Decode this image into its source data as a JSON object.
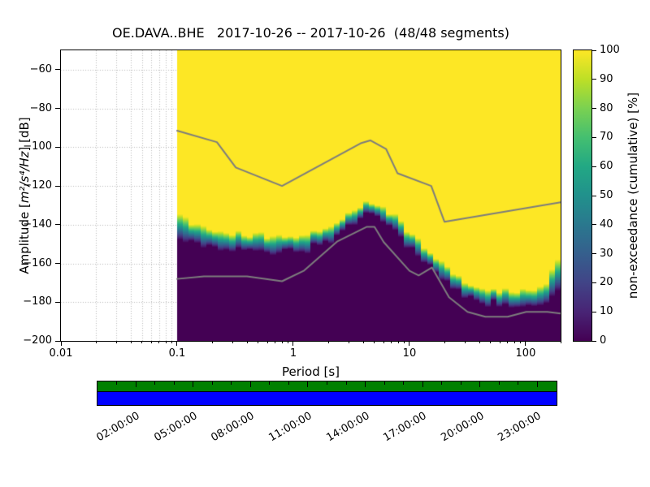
{
  "title": "OE.DAVA..BHE   2017-10-26 -- 2017-10-26  (48/48 segments)",
  "axes": {
    "xlabel": "Period [s]",
    "ylabel_prefix": "Amplitude [",
    "ylabel_math": "m²/s⁴/Hz",
    "ylabel_suffix": "] [dB]",
    "xscale": "log",
    "xlim": [
      0.01,
      200
    ],
    "ylim": [
      -200,
      -50
    ],
    "x_ticks": [
      {
        "v": 0.01,
        "label": "0.01"
      },
      {
        "v": 0.1,
        "label": "0.1"
      },
      {
        "v": 1,
        "label": "1"
      },
      {
        "v": 10,
        "label": "10"
      },
      {
        "v": 100,
        "label": "100"
      }
    ],
    "y_ticks": [
      {
        "v": -60,
        "label": "−60"
      },
      {
        "v": -80,
        "label": "−80"
      },
      {
        "v": -100,
        "label": "−100"
      },
      {
        "v": -120,
        "label": "−120"
      },
      {
        "v": -140,
        "label": "−140"
      },
      {
        "v": -160,
        "label": "−160"
      },
      {
        "v": -180,
        "label": "−180"
      },
      {
        "v": -200,
        "label": "−200"
      }
    ]
  },
  "colorbar": {
    "label": "non-exceedance (cumulative) [%]",
    "ticks": [
      {
        "v": 0,
        "label": "0"
      },
      {
        "v": 10,
        "label": "10"
      },
      {
        "v": 20,
        "label": "20"
      },
      {
        "v": 30,
        "label": "30"
      },
      {
        "v": 40,
        "label": "40"
      },
      {
        "v": 50,
        "label": "50"
      },
      {
        "v": 60,
        "label": "60"
      },
      {
        "v": 70,
        "label": "70"
      },
      {
        "v": 80,
        "label": "80"
      },
      {
        "v": 90,
        "label": "90"
      },
      {
        "v": 100,
        "label": "100"
      }
    ],
    "colormap": "viridis",
    "stops": [
      {
        "p": 0.0,
        "c": "#440154"
      },
      {
        "p": 0.1,
        "c": "#482475"
      },
      {
        "p": 0.2,
        "c": "#414487"
      },
      {
        "p": 0.3,
        "c": "#355f8d"
      },
      {
        "p": 0.4,
        "c": "#2a788e"
      },
      {
        "p": 0.5,
        "c": "#21918c"
      },
      {
        "p": 0.6,
        "c": "#22a884"
      },
      {
        "p": 0.7,
        "c": "#44bf70"
      },
      {
        "p": 0.8,
        "c": "#7ad151"
      },
      {
        "p": 0.9,
        "c": "#bddf26"
      },
      {
        "p": 1.0,
        "c": "#fde725"
      }
    ]
  },
  "chart_data": {
    "type": "heatmap",
    "title": "OE.DAVA..BHE   2017-10-26 -- 2017-10-26  (48/48 segments)",
    "xlabel": "Period [s]",
    "ylabel": "Amplitude [m²/s⁴/Hz] [dB]",
    "xscale": "log",
    "xlim": [
      0.01,
      200
    ],
    "ylim": [
      -200,
      -50
    ],
    "colorbar_label": "non-exceedance (cumulative) [%]",
    "colorbar_range": [
      0,
      100
    ],
    "data_period_range": [
      0.1,
      200
    ],
    "value_above_boundary_pct": 100,
    "value_below_boundary_pct": 0,
    "transition_boundary": {
      "periods": [
        0.1,
        0.12,
        0.15,
        0.2,
        0.3,
        0.5,
        0.7,
        1.0,
        1.5,
        2.0,
        3.0,
        4.0,
        5.0,
        6.0,
        8.0,
        10,
        13,
        16,
        20,
        25,
        30,
        40,
        60,
        80,
        100,
        130,
        160,
        200
      ],
      "center_db": [
        -139,
        -144,
        -146,
        -147,
        -148,
        -150,
        -151,
        -150,
        -148,
        -145,
        -138,
        -132,
        -131,
        -133,
        -141,
        -148,
        -155,
        -160,
        -165,
        -170,
        -173,
        -176,
        -178,
        -179,
        -179,
        -178,
        -173,
        -166
      ],
      "band_db": [
        14,
        12,
        10,
        9,
        8,
        8,
        8,
        8,
        8,
        8,
        7,
        6,
        6,
        7,
        8,
        8,
        8,
        8,
        8,
        8,
        7,
        7,
        7,
        7,
        8,
        9,
        12,
        16
      ]
    },
    "noise_models": {
      "high_noise_model": {
        "periods": [
          0.1,
          0.22,
          0.32,
          0.8,
          3.8,
          4.6,
          6.3,
          7.9,
          15.4,
          20.0,
          200.0
        ],
        "db": [
          -91.5,
          -97.4,
          -110.5,
          -120.0,
          -98.0,
          -96.5,
          -101.0,
          -113.5,
          -120.0,
          -138.5,
          -128.5
        ]
      },
      "low_noise_model": {
        "periods": [
          0.1,
          0.17,
          0.4,
          0.8,
          1.24,
          2.4,
          4.3,
          5.0,
          6.0,
          10.0,
          12.0,
          15.6,
          21.9,
          31.6,
          45.0,
          70.0,
          101.0,
          154.0,
          200.0
        ],
        "db": [
          -168.0,
          -166.7,
          -166.7,
          -169.2,
          -163.7,
          -148.6,
          -141.1,
          -141.1,
          -149.0,
          -163.8,
          -166.2,
          -162.1,
          -177.5,
          -185.0,
          -187.5,
          -187.5,
          -185.0,
          -185.0,
          -185.9
        ]
      }
    }
  },
  "timeline": {
    "range_hours": [
      0,
      24
    ],
    "tick_labels": [
      {
        "hour": 2,
        "label": "02:00:00"
      },
      {
        "hour": 5,
        "label": "05:00:00"
      },
      {
        "hour": 8,
        "label": "08:00:00"
      },
      {
        "hour": 11,
        "label": "11:00:00"
      },
      {
        "hour": 14,
        "label": "14:00:00"
      },
      {
        "hour": 17,
        "label": "17:00:00"
      },
      {
        "hour": 20,
        "label": "20:00:00"
      },
      {
        "hour": 23,
        "label": "23:00:00"
      }
    ],
    "coverage_color": "#008000",
    "timerange_color": "#0000ff"
  },
  "colors": {
    "noise_model_line": "#7d7d7d",
    "grid": "#bbbbbb",
    "background": "#ffffff",
    "heatmap_low": "#440154",
    "heatmap_high": "#fde725"
  }
}
